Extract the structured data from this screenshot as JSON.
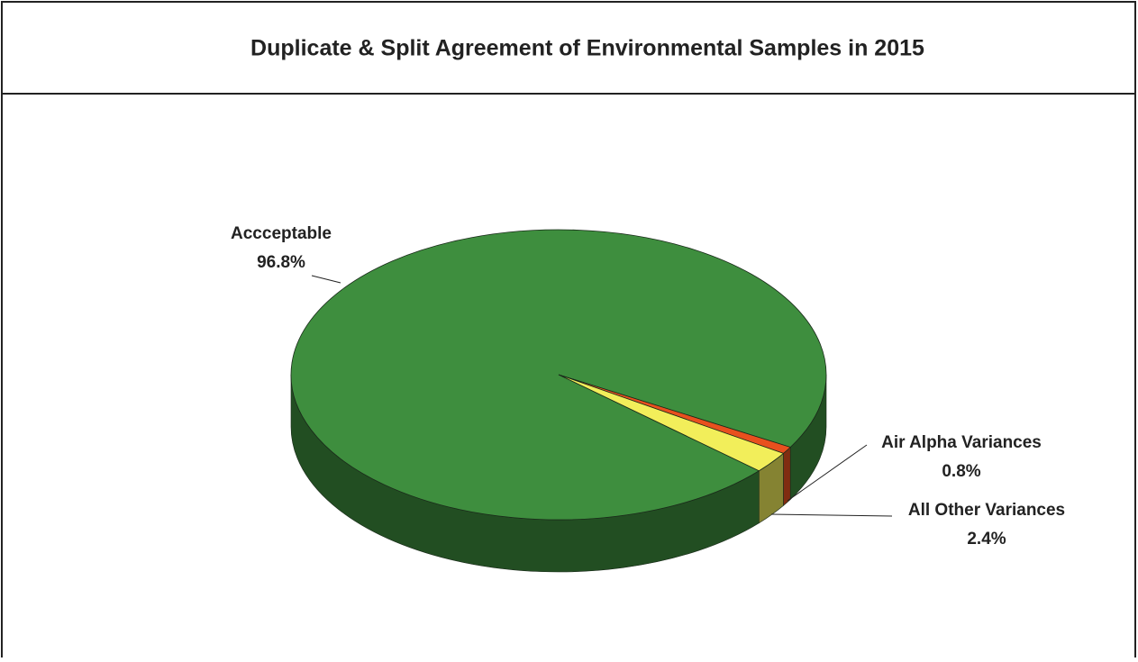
{
  "chart_data": {
    "type": "pie3d",
    "title": "Duplicate & Split Agreement of Environmental Samples in 2015",
    "categories": [
      "Accceptable",
      "Air Alpha Variances",
      "All Other Variances"
    ],
    "values": [
      96.8,
      0.8,
      2.4
    ],
    "value_labels": [
      "96.8%",
      "0.8%",
      "2.4%"
    ],
    "colors": [
      "#3e8e3e",
      "#e8501e",
      "#f2ee5a"
    ]
  }
}
